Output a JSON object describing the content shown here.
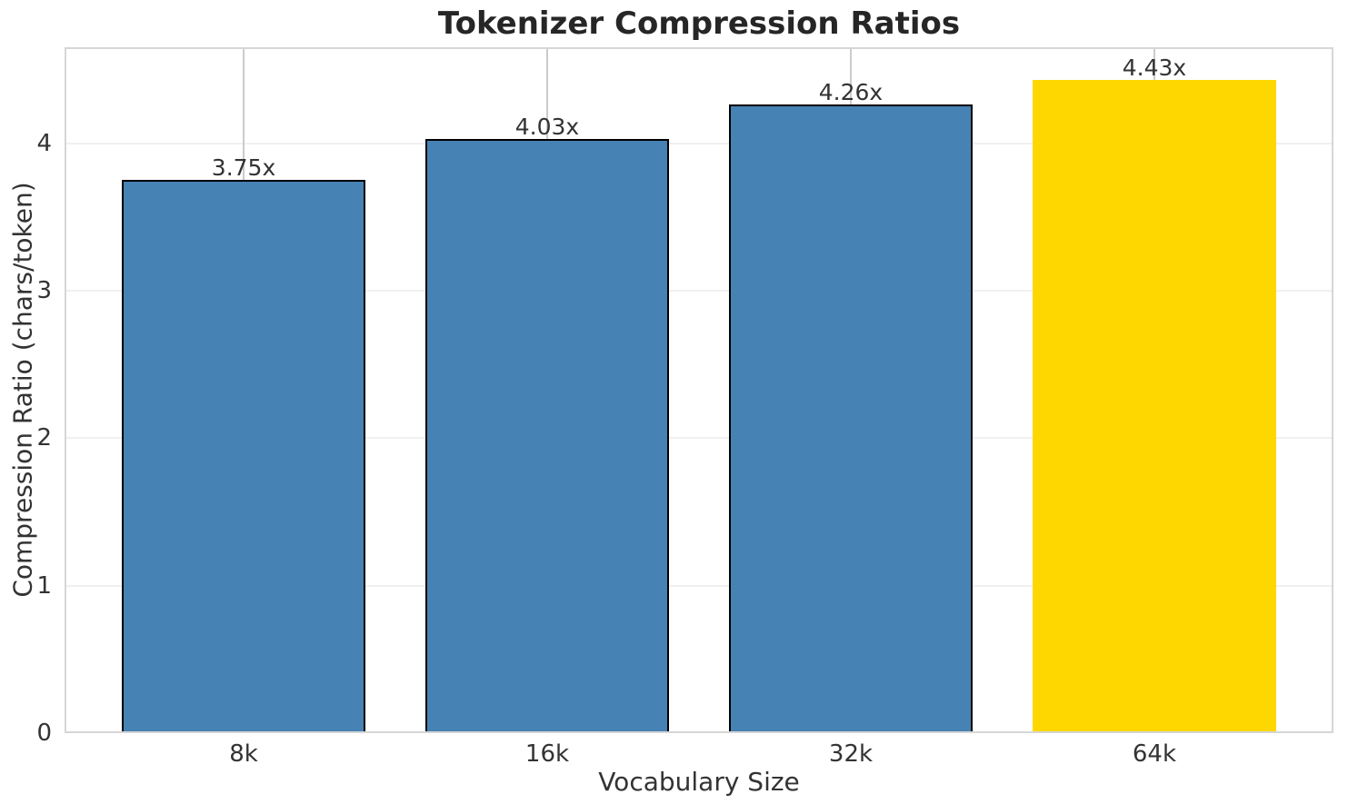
{
  "chart_data": {
    "type": "bar",
    "title": "Tokenizer Compression Ratios",
    "xlabel": "Vocabulary Size",
    "ylabel": "Compression Ratio (chars/token)",
    "categories": [
      "8k",
      "16k",
      "32k",
      "64k"
    ],
    "values": [
      3.75,
      4.03,
      4.26,
      4.43
    ],
    "bar_labels": [
      "3.75x",
      "4.03x",
      "4.26x",
      "4.43x"
    ],
    "yticks": [
      0,
      1,
      2,
      3,
      4
    ],
    "ylim": [
      0,
      4.65
    ],
    "x_range": [
      -0.59,
      3.59
    ],
    "bar_unit_width": 0.8,
    "grid": true,
    "legend": "none",
    "colors": {
      "bar_default": "#4682B4",
      "bar_highlight": "#FFD700",
      "bar_edge": "#000000",
      "title_text": "#262626",
      "tick_text": "#333333"
    },
    "bar_colors": [
      "#4682B4",
      "#4682B4",
      "#4682B4",
      "#FFD700"
    ],
    "bar_edge_colors": [
      "#000000",
      "#000000",
      "#000000",
      "none"
    ],
    "highlight_index": 3
  }
}
